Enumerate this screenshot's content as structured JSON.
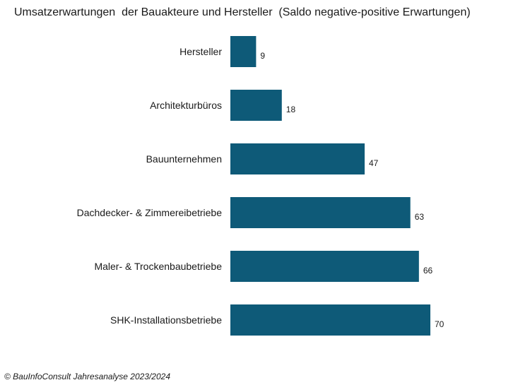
{
  "chart_data": {
    "type": "bar",
    "orientation": "horizontal",
    "title": "Umsatzerwartungen  der Bauakteure und Hersteller  (Saldo negative-positive Erwartungen)",
    "categories": [
      "Hersteller",
      "Architekturbüros",
      "Bauunternehmen",
      "Dachdecker- & Zimmereibetriebe",
      "Maler- & Trockenbaubetriebe",
      "SHK-Installationsbetriebe"
    ],
    "values": [
      9,
      18,
      47,
      63,
      66,
      70
    ],
    "bar_color": "#0e5a78",
    "grid": false,
    "legend": "none"
  },
  "footer": "© BauInfoConsult Jahresanalyse 2023/2024"
}
